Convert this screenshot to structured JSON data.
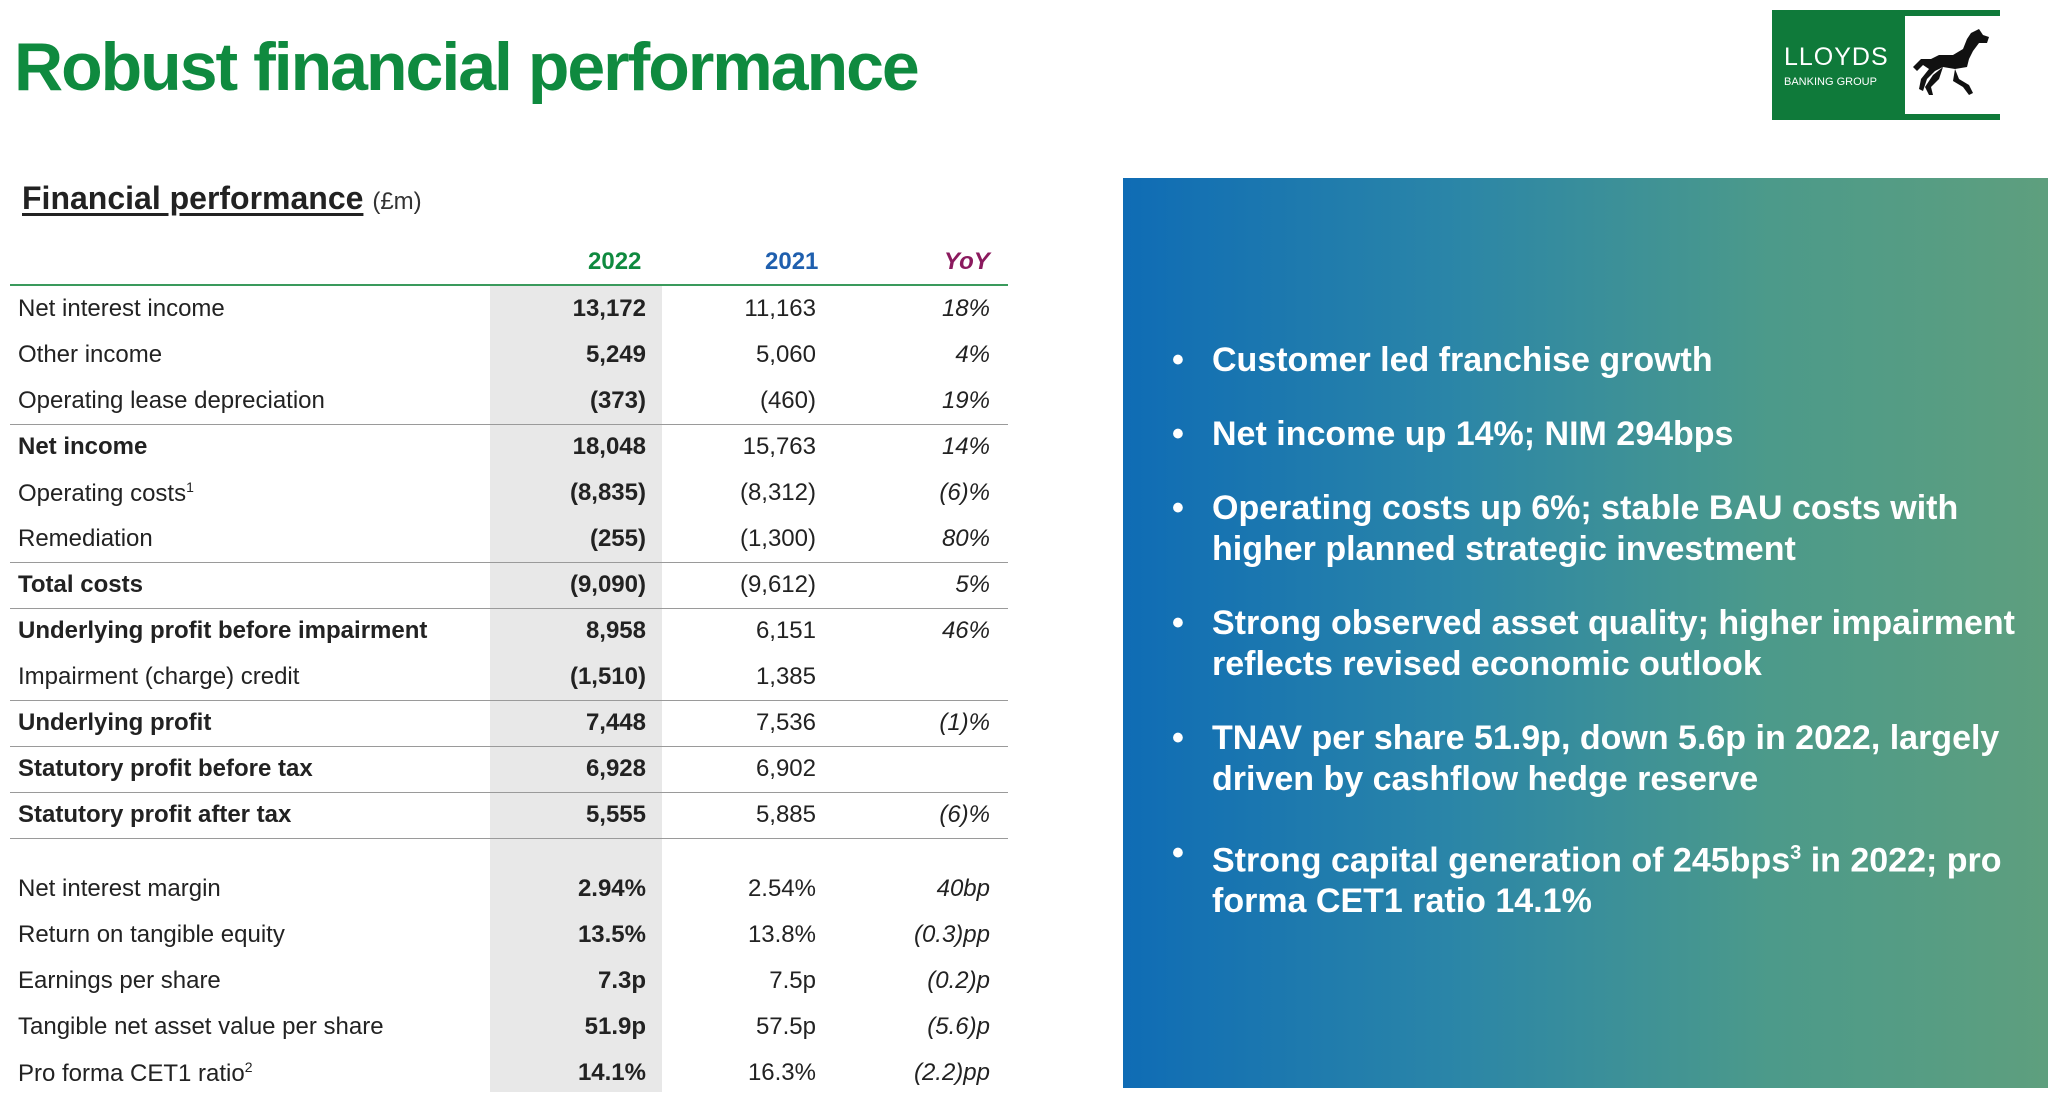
{
  "title": "Robust financial performance",
  "logo": {
    "name": "LLOYDS",
    "sub": "BANKING GROUP"
  },
  "section": {
    "title": "Financial performance",
    "unit": "(£m)"
  },
  "columns": {
    "y2022": "2022",
    "y2021": "2021",
    "yoy": "YoY"
  },
  "colors": {
    "green": "#0f8a3f",
    "blue": "#1f5fae",
    "purple": "#8b1a5e"
  },
  "rows": [
    {
      "label": "Net interest income",
      "v2022": "13,172",
      "v2021": "11,163",
      "yoy": "18%"
    },
    {
      "label": "Other income",
      "v2022": "5,249",
      "v2021": "5,060",
      "yoy": "4%"
    },
    {
      "label": "Operating lease depreciation",
      "v2022": "(373)",
      "v2021": "(460)",
      "yoy": "19%"
    },
    {
      "label": "Net income",
      "v2022": "18,048",
      "v2021": "15,763",
      "yoy": "14%"
    },
    {
      "label": "Operating costs",
      "sup": "1",
      "v2022": "(8,835)",
      "v2021": "(8,312)",
      "yoy": "(6)%"
    },
    {
      "label": "Remediation",
      "v2022": "(255)",
      "v2021": "(1,300)",
      "yoy": "80%"
    },
    {
      "label": "Total costs",
      "v2022": "(9,090)",
      "v2021": "(9,612)",
      "yoy": "5%"
    },
    {
      "label": "Underlying profit before impairment",
      "v2022": "8,958",
      "v2021": "6,151",
      "yoy": "46%"
    },
    {
      "label": "Impairment (charge) credit",
      "v2022": "(1,510)",
      "v2021": "1,385",
      "yoy": ""
    },
    {
      "label": "Underlying profit",
      "v2022": "7,448",
      "v2021": "7,536",
      "yoy": "(1)%"
    },
    {
      "label": "Statutory profit before tax",
      "v2022": "6,928",
      "v2021": "6,902",
      "yoy": ""
    },
    {
      "label": "Statutory profit after tax",
      "v2022": "5,555",
      "v2021": "5,885",
      "yoy": "(6)%"
    },
    {
      "label": "Net interest margin",
      "v2022": "2.94%",
      "v2021": "2.54%",
      "yoy": "40bp"
    },
    {
      "label": "Return on tangible equity",
      "v2022": "13.5%",
      "v2021": "13.8%",
      "yoy": "(0.3)pp"
    },
    {
      "label": "Earnings per share",
      "v2022": "7.3p",
      "v2021": "7.5p",
      "yoy": "(0.2)p"
    },
    {
      "label": "Tangible net asset value per share",
      "v2022": "51.9p",
      "v2021": "57.5p",
      "yoy": "(5.6)p"
    },
    {
      "label": "Pro forma CET1 ratio",
      "sup": "2",
      "v2022": "14.1%",
      "v2021": "16.3%",
      "yoy": "(2.2)pp"
    }
  ],
  "bullets": [
    "Customer led franchise growth",
    "Net income up 14%; NIM 294bps",
    "Operating costs up 6%; stable BAU costs with higher planned strategic investment",
    "Strong observed asset quality; higher impairment reflects revised economic outlook",
    "TNAV per share 51.9p, down 5.6p in 2022, largely driven by cashflow hedge reserve",
    "Strong capital generation of 245bps",
    "in 2022; pro forma CET1 ratio 14.1%"
  ],
  "bullet6_sup": "3"
}
